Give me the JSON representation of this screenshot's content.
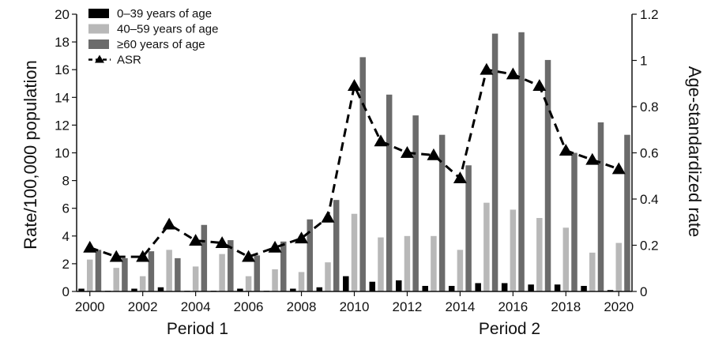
{
  "chart_data": {
    "type": "bar",
    "x": [
      2000,
      2001,
      2002,
      2003,
      2004,
      2005,
      2006,
      2007,
      2008,
      2009,
      2010,
      2011,
      2012,
      2013,
      2014,
      2015,
      2016,
      2017,
      2018,
      2019,
      2020
    ],
    "x_tick_labels": [
      "2000",
      "2002",
      "2004",
      "2006",
      "2008",
      "2010",
      "2012",
      "2014",
      "2016",
      "2018",
      "2020"
    ],
    "ylabel": "Rate/100,000 population",
    "y2label": "Age-standardized rate",
    "ylim": [
      0,
      20
    ],
    "y2lim": [
      0,
      1.2
    ],
    "y_ticks": [
      0,
      2,
      4,
      6,
      8,
      10,
      12,
      14,
      16,
      18,
      20
    ],
    "y2_ticks": [
      "0",
      "0.2",
      "0.4",
      "0.6",
      "0.8",
      "1",
      "1.2"
    ],
    "periods": [
      "Period 1",
      "Period 2"
    ],
    "legend_position": "top-left",
    "series": [
      {
        "name": "0–39 years of age",
        "kind": "bar",
        "axis": "left",
        "color": "#000000",
        "values": [
          0.2,
          0.05,
          0.2,
          0.3,
          0.05,
          0.05,
          0.2,
          0.05,
          0.2,
          0.3,
          1.1,
          0.7,
          0.8,
          0.4,
          0.4,
          0.6,
          0.6,
          0.5,
          0.5,
          0.4,
          0.1
        ]
      },
      {
        "name": "40–59 years of age",
        "kind": "bar",
        "axis": "left",
        "color": "#b8b8b8",
        "values": [
          2.3,
          1.7,
          1.1,
          3.0,
          1.8,
          2.7,
          1.1,
          1.6,
          1.4,
          2.1,
          5.6,
          3.9,
          4.0,
          4.0,
          3.0,
          6.4,
          5.9,
          5.3,
          4.6,
          2.8,
          3.5
        ]
      },
      {
        "name": "≥60 years of age",
        "kind": "bar",
        "axis": "left",
        "color": "#6b6b6b",
        "values": [
          3.0,
          2.4,
          2.9,
          2.4,
          4.8,
          3.7,
          2.6,
          3.6,
          5.2,
          6.6,
          16.9,
          14.2,
          12.7,
          11.3,
          9.1,
          18.6,
          18.7,
          16.7,
          10.0,
          12.2,
          11.3
        ]
      },
      {
        "name": "ASR",
        "kind": "line",
        "axis": "right",
        "color": "#000000",
        "style": "dashed",
        "marker": "triangle",
        "values": [
          0.19,
          0.15,
          0.15,
          0.29,
          0.22,
          0.21,
          0.15,
          0.19,
          0.23,
          0.32,
          0.89,
          0.65,
          0.6,
          0.59,
          0.49,
          0.96,
          0.94,
          0.89,
          0.61,
          0.57,
          0.53
        ]
      }
    ]
  }
}
